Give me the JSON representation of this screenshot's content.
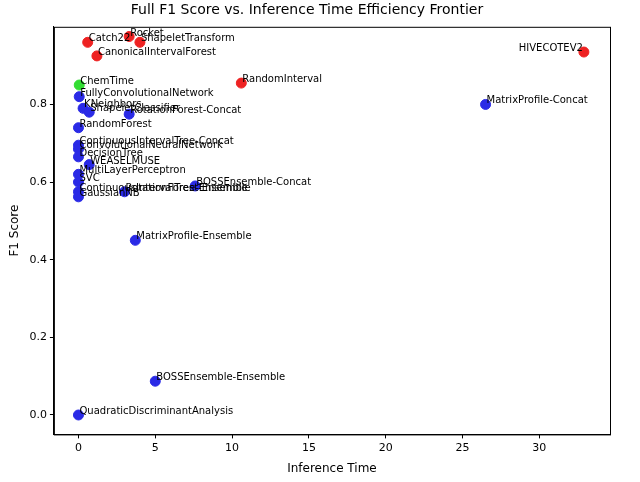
{
  "chart_data": {
    "type": "scatter",
    "title": "Full F1 Score vs. Inference Time Efficiency Frontier",
    "x_label": "Inference Time",
    "y_label": "F1 Score",
    "names": [
      "Rocket",
      "ShapeletTransform",
      "Catch22",
      "CanonicalIntervalForest",
      "HIVECOTEV2",
      "RandomInterval",
      "ChemTime",
      "FullyConvolutionalNetwork",
      "RotationForest-Concat",
      "KNeighbors",
      "ShapeletClassifier",
      "RandomForest",
      "ContinuousIntervalTree-Concat",
      "ConvolutionalNeuralNetwork",
      "DecisionTree",
      "WEASELMUSE",
      "MultiLayerPerceptron",
      "SVC",
      "ContinuousIntervalTree-Ensemble",
      "GaussianNB",
      "RotationForest-Ensemble",
      "BOSSEnsemble-Concat",
      "MatrixProfile-Ensemble",
      "BOSSEnsemble-Ensemble",
      "QuadraticDiscriminantAnalysis",
      "MatrixProfile-Concat"
    ],
    "x": [
      3.3,
      4.0,
      0.6,
      1.2,
      32.9,
      10.6,
      0.05,
      0.05,
      3.3,
      0.3,
      0.7,
      0.0,
      0.0,
      0.0,
      0.0,
      0.7,
      0.0,
      0.0,
      0.0,
      0.0,
      3.0,
      7.6,
      3.7,
      5.0,
      0.0,
      26.5
    ],
    "values": [
      0.975,
      0.96,
      0.96,
      0.925,
      0.935,
      0.855,
      0.85,
      0.82,
      0.775,
      0.79,
      0.78,
      0.74,
      0.695,
      0.685,
      0.665,
      0.645,
      0.62,
      0.6,
      0.575,
      0.562,
      0.575,
      0.59,
      0.45,
      0.087,
      0.0,
      0.8
    ],
    "colors": [
      "#ee2222",
      "#ee2222",
      "#ee2222",
      "#ee2222",
      "#ee2222",
      "#ee2222",
      "#33dd33",
      "#2a2ae6",
      "#2a2ae6",
      "#2a2ae6",
      "#2a2ae6",
      "#2a2ae6",
      "#2a2ae6",
      "#2a2ae6",
      "#2a2ae6",
      "#2a2ae6",
      "#2a2ae6",
      "#2a2ae6",
      "#2a2ae6",
      "#2a2ae6",
      "#2a2ae6",
      "#2a2ae6",
      "#2a2ae6",
      "#2a2ae6",
      "#2a2ae6",
      "#2a2ae6"
    ],
    "xlim": [
      -1.6,
      34.6
    ],
    "ylim": [
      -0.05,
      1.0
    ],
    "xticks": [
      0,
      5,
      10,
      15,
      20,
      25,
      30
    ],
    "yticks": [
      {
        "value": 0,
        "label": "0.0"
      },
      {
        "value": 0.2,
        "label": "0.2"
      },
      {
        "value": 0.4,
        "label": "0.4"
      },
      {
        "value": 0.6,
        "label": "0.6"
      },
      {
        "value": 0.8,
        "label": "0.8"
      }
    ],
    "grid": false,
    "marker": "circle"
  }
}
